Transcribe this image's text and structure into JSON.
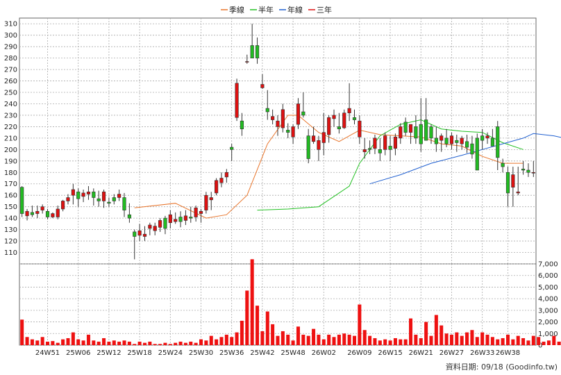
{
  "legend": [
    {
      "label": "季線",
      "color": "#e8742a"
    },
    {
      "label": "半年",
      "color": "#22c022"
    },
    {
      "label": "年線",
      "color": "#1f5fd0"
    },
    {
      "label": "三年",
      "color": "#dd1111"
    }
  ],
  "footer": {
    "label": "資料日期:",
    "date": "09/18",
    "source": "(Goodinfo.tw)"
  },
  "chart_data": [
    {
      "type": "candlestick",
      "name": "price",
      "ylim": [
        100,
        315
      ],
      "y_ticks": [
        110,
        120,
        130,
        140,
        150,
        160,
        170,
        180,
        190,
        200,
        210,
        220,
        230,
        240,
        250,
        260,
        270,
        280,
        290,
        300,
        310
      ],
      "x_tick_labels": [
        "24W51",
        "25W06",
        "25W12",
        "25W18",
        "25W24",
        "25W30",
        "25W36",
        "25W42",
        "25W48",
        "26W02",
        "26W09",
        "26W15",
        "26W21",
        "26W27",
        "26W33",
        "26W38"
      ],
      "x_tick_index": [
        5,
        11,
        17,
        23,
        29,
        35,
        41,
        47,
        53,
        59,
        66,
        72,
        78,
        84,
        90,
        95
      ],
      "ohlc": [
        [
          167,
          168,
          141,
          144
        ],
        [
          142,
          148,
          138,
          146
        ],
        [
          145,
          151,
          141,
          143
        ],
        [
          144,
          151,
          140,
          146
        ],
        [
          147,
          152,
          144,
          150
        ],
        [
          146,
          148,
          139,
          141
        ],
        [
          141,
          145,
          140,
          144
        ],
        [
          141,
          151,
          139,
          148
        ],
        [
          148,
          156,
          146,
          155
        ],
        [
          155,
          161,
          152,
          158
        ],
        [
          160,
          170,
          152,
          165
        ],
        [
          163,
          166,
          150,
          157
        ],
        [
          159,
          165,
          154,
          162
        ],
        [
          161,
          168,
          156,
          163
        ],
        [
          163,
          166,
          151,
          158
        ],
        [
          157,
          164,
          150,
          155
        ],
        [
          155,
          165,
          149,
          163
        ],
        [
          154,
          158,
          150,
          153
        ],
        [
          158,
          161,
          152,
          155
        ],
        [
          158,
          165,
          155,
          161
        ],
        [
          158,
          162,
          141,
          147
        ],
        [
          143,
          153,
          136,
          140
        ],
        [
          128,
          130,
          104,
          124
        ],
        [
          125,
          135,
          120,
          129
        ],
        [
          124,
          133,
          120,
          126
        ],
        [
          131,
          136,
          125,
          134
        ],
        [
          129,
          136,
          125,
          133
        ],
        [
          132,
          140,
          128,
          138
        ],
        [
          140,
          142,
          126,
          131
        ],
        [
          136,
          147,
          131,
          143
        ],
        [
          137,
          145,
          135,
          139
        ],
        [
          141,
          146,
          132,
          137
        ],
        [
          138,
          147,
          134,
          142
        ],
        [
          141,
          150,
          136,
          140
        ],
        [
          141,
          151,
          137,
          149
        ],
        [
          144,
          148,
          136,
          146
        ],
        [
          147,
          163,
          144,
          160
        ],
        [
          156,
          163,
          147,
          158
        ],
        [
          162,
          175,
          160,
          173
        ],
        [
          171,
          180,
          167,
          175
        ],
        [
          176,
          183,
          171,
          180
        ],
        [
          202,
          205,
          190,
          200
        ],
        [
          228,
          262,
          225,
          258
        ],
        [
          225,
          232,
          212,
          218
        ],
        [
          277,
          283,
          275,
          277
        ],
        [
          291,
          310,
          280,
          280
        ],
        [
          291,
          298,
          275,
          280
        ],
        [
          254,
          266,
          253,
          257
        ],
        [
          236,
          252,
          226,
          233
        ],
        [
          226,
          235,
          222,
          229
        ],
        [
          220,
          230,
          212,
          225
        ],
        [
          219,
          240,
          215,
          235
        ],
        [
          217,
          223,
          210,
          215
        ],
        [
          211,
          222,
          205,
          220
        ],
        [
          222,
          245,
          218,
          240
        ],
        [
          233,
          250,
          228,
          230
        ],
        [
          212,
          218,
          188,
          192
        ],
        [
          207,
          220,
          205,
          212
        ],
        [
          200,
          212,
          190,
          208
        ],
        [
          206,
          232,
          195,
          215
        ],
        [
          213,
          230,
          206,
          228
        ],
        [
          227,
          235,
          220,
          230
        ],
        [
          220,
          232,
          214,
          218
        ],
        [
          219,
          235,
          218,
          232
        ],
        [
          232,
          258,
          225,
          236
        ],
        [
          228,
          235,
          222,
          226
        ],
        [
          211,
          230,
          205,
          225
        ],
        [
          198,
          210,
          192,
          200
        ],
        [
          201,
          208,
          196,
          200
        ],
        [
          201,
          213,
          196,
          210
        ],
        [
          200,
          210,
          190,
          197
        ],
        [
          200,
          215,
          195,
          212
        ],
        [
          203,
          212,
          190,
          200
        ],
        [
          201,
          214,
          195,
          211
        ],
        [
          210,
          223,
          205,
          220
        ],
        [
          224,
          228,
          212,
          215
        ],
        [
          215,
          222,
          205,
          222
        ],
        [
          220,
          230,
          205,
          210
        ],
        [
          222,
          245,
          198,
          205
        ],
        [
          226,
          245,
          210,
          208
        ],
        [
          220,
          222,
          205,
          210
        ],
        [
          210,
          220,
          198,
          205
        ],
        [
          208,
          214,
          198,
          212
        ],
        [
          210,
          218,
          202,
          205
        ],
        [
          205,
          215,
          200,
          212
        ],
        [
          208,
          213,
          198,
          206
        ],
        [
          205,
          212,
          200,
          210
        ],
        [
          207,
          213,
          197,
          202
        ],
        [
          205,
          212,
          192,
          196
        ],
        [
          210,
          214,
          182,
          182
        ],
        [
          212,
          218,
          200,
          208
        ],
        [
          210,
          215,
          205,
          212
        ],
        [
          210,
          218,
          205,
          203
        ],
        [
          220,
          225,
          182,
          193
        ],
        [
          188,
          192,
          180,
          185
        ],
        [
          180,
          185,
          150,
          162
        ],
        [
          167,
          185,
          150,
          178
        ],
        [
          162,
          185,
          160,
          163
        ],
        [
          183,
          190,
          178,
          182
        ],
        [
          182,
          188,
          176,
          180
        ],
        [
          180,
          190,
          176,
          180
        ]
      ],
      "series": [
        {
          "name": "季線",
          "x": [
            22,
            30,
            36,
            40,
            44,
            48,
            52,
            54,
            58,
            62,
            66,
            70,
            74,
            78,
            82,
            86,
            90,
            94,
            98
          ],
          "values": [
            149,
            153,
            140,
            143,
            160,
            205,
            230,
            230,
            215,
            207,
            217,
            213,
            212,
            211,
            205,
            203,
            194,
            188,
            188
          ]
        },
        {
          "name": "半年",
          "x": [
            46,
            52,
            58,
            64,
            66,
            70,
            74,
            78,
            82,
            86,
            90,
            94,
            98
          ],
          "values": [
            147,
            148,
            150,
            168,
            188,
            212,
            222,
            226,
            218,
            216,
            215,
            206,
            200
          ]
        },
        {
          "name": "年線",
          "x": [
            68,
            74,
            80,
            86,
            90,
            94,
            98,
            100,
            104,
            106
          ],
          "values": [
            170,
            178,
            188,
            195,
            200,
            205,
            210,
            214,
            212,
            210
          ]
        }
      ]
    },
    {
      "type": "bar",
      "name": "volume",
      "ylim": [
        0,
        7000
      ],
      "y_ticks": [
        0,
        1000,
        2000,
        3000,
        4000,
        5000,
        6000,
        7000
      ],
      "y_tick_labels": [
        "0",
        "1,000",
        "2,000",
        "3,000",
        "4,000",
        "5,000",
        "6,000",
        "7,000"
      ],
      "values": [
        2200,
        700,
        500,
        400,
        700,
        300,
        350,
        200,
        500,
        600,
        1100,
        500,
        400,
        900,
        400,
        300,
        600,
        300,
        400,
        300,
        400,
        300,
        100,
        300,
        200,
        300,
        100,
        100,
        200,
        100,
        200,
        300,
        200,
        300,
        200,
        500,
        400,
        800,
        500,
        700,
        900,
        700,
        1100,
        2100,
        4700,
        7400,
        3400,
        1200,
        2900,
        1800,
        800,
        1200,
        900,
        400,
        1600,
        900,
        800,
        1400,
        900,
        500,
        900,
        700,
        900,
        1000,
        900,
        800,
        3500,
        1300,
        800,
        600,
        400,
        500,
        400,
        600,
        500,
        500,
        2300,
        900,
        600,
        2000,
        800,
        2600,
        1700,
        1000,
        900,
        1100,
        800,
        1100,
        1300,
        700,
        1100,
        900,
        700,
        500,
        600,
        900,
        500,
        800,
        600,
        400,
        800,
        700,
        300,
        400,
        800,
        300
      ]
    }
  ]
}
